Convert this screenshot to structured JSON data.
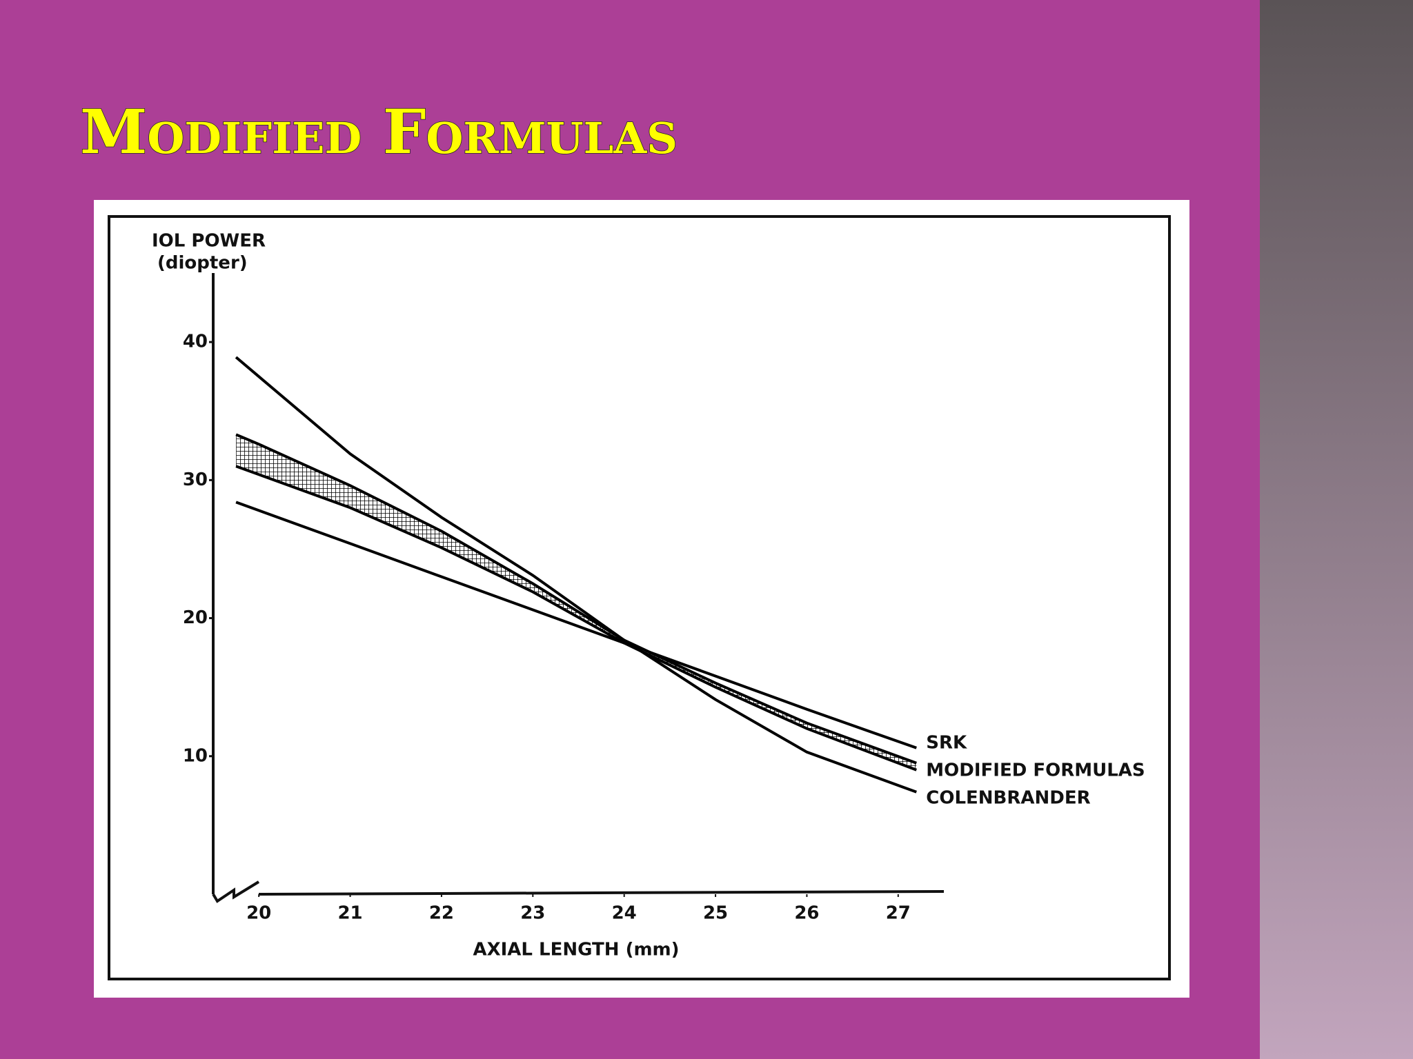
{
  "chart_data": {
    "type": "line",
    "title": "Modified Formulas",
    "xlabel": "AXIAL LENGTH (mm)",
    "ylabel": [
      "IOL POWER",
      "(diopter)"
    ],
    "x": [
      19.75,
      20,
      21,
      22,
      23,
      24,
      25,
      26,
      27.2
    ],
    "series": [
      {
        "name": "SRK",
        "color": "#000000",
        "values": [
          28.4,
          27.8,
          25.4,
          23.0,
          20.6,
          18.2,
          15.8,
          13.4,
          10.6
        ]
      },
      {
        "name": "MODIFIED FORMULAS",
        "color": "#000000",
        "values": [
          31.0,
          30.4,
          28.0,
          25.1,
          21.9,
          18.2,
          15.0,
          12.0,
          9.0
        ],
        "values_upper": [
          33.3,
          32.6,
          29.6,
          26.3,
          22.5,
          18.4,
          15.3,
          12.4,
          9.5
        ]
      },
      {
        "name": "COLENBRANDER",
        "color": "#000000",
        "values": [
          38.9,
          37.5,
          31.9,
          27.3,
          23.1,
          18.4,
          14.1,
          10.3,
          7.4
        ]
      }
    ],
    "xlim": [
      19.5,
      27.5
    ],
    "xticks": [
      20,
      21,
      22,
      23,
      24,
      25,
      26,
      27
    ],
    "ylim": [
      0,
      45
    ],
    "yticks": [
      10,
      20,
      30,
      40
    ]
  }
}
